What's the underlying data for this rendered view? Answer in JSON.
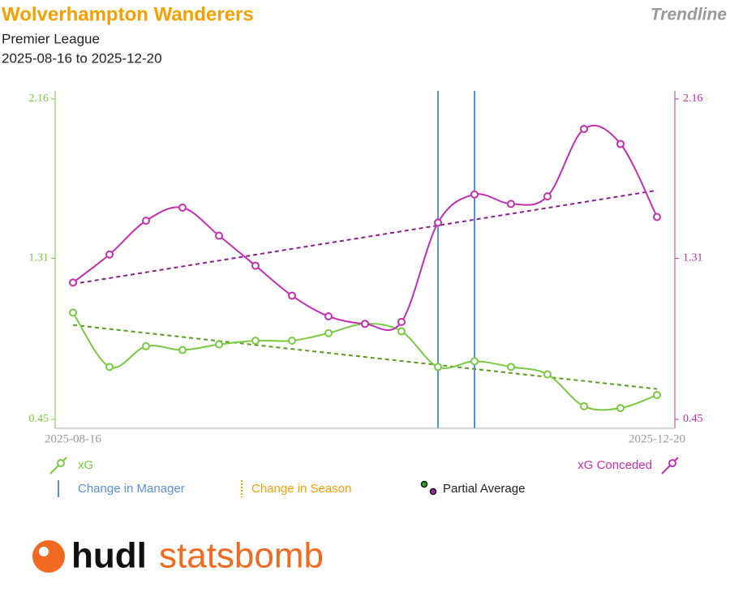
{
  "header": {
    "title": "Wolverhampton Wanderers",
    "competition": "Premier League",
    "date_range": "2025-08-16 to 2025-12-20",
    "view": "Trendline"
  },
  "chart_data": {
    "type": "line",
    "categories": [
      "2025-08-16",
      null,
      null,
      null,
      null,
      null,
      null,
      null,
      null,
      null,
      null,
      null,
      null,
      null,
      null,
      null,
      "2025-12-20"
    ],
    "series": [
      {
        "name": "xG",
        "color": "#7ac943",
        "trend_color": "#5a9a20",
        "axis": "y",
        "values": [
          1.02,
          0.73,
          0.84,
          0.82,
          0.85,
          0.87,
          0.87,
          0.91,
          0.96,
          0.92,
          0.73,
          0.76,
          0.73,
          0.69,
          0.52,
          0.51,
          0.58
        ]
      },
      {
        "name": "xG Conceded",
        "color": "#c030b0",
        "trend_color": "#8a2090",
        "axis": "y2",
        "values": [
          1.18,
          1.33,
          1.51,
          1.58,
          1.43,
          1.27,
          1.11,
          1.0,
          0.96,
          0.97,
          1.5,
          1.65,
          1.6,
          1.64,
          2.0,
          1.92,
          1.53
        ]
      }
    ],
    "manager_changes": [
      10,
      11
    ],
    "ylim": [
      0.45,
      2.16
    ],
    "yticks": [
      0.45,
      1.31,
      2.16
    ],
    "y2lim": [
      0.45,
      2.16
    ],
    "y2ticks": [
      0.45,
      1.31,
      2.16
    ],
    "legend": {
      "manager": "Change in Manager",
      "season": "Change in Season",
      "partial": "Partial Average"
    }
  },
  "logo": {
    "left": "hudl",
    "right": "statsbomb"
  }
}
